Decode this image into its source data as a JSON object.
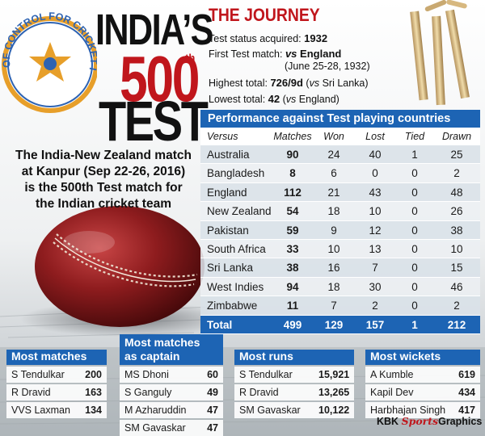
{
  "title": {
    "line1": "INDIA’S",
    "line2": "500",
    "line2_sup": "th",
    "line3": "TEST"
  },
  "emblem": {
    "text": "BOARD OF CONTROL FOR CRICKET IN INDIA",
    "icon": "bcci-star-emblem"
  },
  "intro": {
    "lines": [
      "The India-New Zealand match",
      "at Kanpur (Sep 22-26, 2016)",
      "is the 500th Test match for",
      "the Indian cricket team"
    ]
  },
  "journey": {
    "heading": "THE JOURNEY",
    "status_label": "Test status acquired:",
    "status_value": "1932",
    "first_label": "First Test match:",
    "first_vs": "vs",
    "first_value": "England",
    "first_date": "(June 25-28, 1932)",
    "highest_label": "Highest total:",
    "highest_value": "726/9d",
    "highest_open": "(",
    "highest_vs": "vs",
    "highest_opp": "Sri Lanka)",
    "lowest_label": "Lowest total:",
    "lowest_value": "42",
    "lowest_open": "(",
    "lowest_vs": "vs",
    "lowest_opp": "England)"
  },
  "performance": {
    "heading": "Performance against Test playing countries",
    "columns": [
      "Versus",
      "Matches",
      "Won",
      "Lost",
      "Tied",
      "Drawn"
    ],
    "rows": [
      [
        "Australia",
        "90",
        "24",
        "40",
        "1",
        "25"
      ],
      [
        "Bangladesh",
        "8",
        "6",
        "0",
        "0",
        "2"
      ],
      [
        "England",
        "112",
        "21",
        "43",
        "0",
        "48"
      ],
      [
        "New Zealand",
        "54",
        "18",
        "10",
        "0",
        "26"
      ],
      [
        "Pakistan",
        "59",
        "9",
        "12",
        "0",
        "38"
      ],
      [
        "South Africa",
        "33",
        "10",
        "13",
        "0",
        "10"
      ],
      [
        "Sri Lanka",
        "38",
        "16",
        "7",
        "0",
        "15"
      ],
      [
        "West Indies",
        "94",
        "18",
        "30",
        "0",
        "46"
      ],
      [
        "Zimbabwe",
        "11",
        "7",
        "2",
        "0",
        "2"
      ]
    ],
    "total": [
      "Total",
      "499",
      "129",
      "157",
      "1",
      "212"
    ]
  },
  "panels": {
    "most_matches": {
      "heading": "Most matches",
      "rows": [
        [
          "S Tendulkar",
          "200"
        ],
        [
          "R Dravid",
          "163"
        ],
        [
          "VVS Laxman",
          "134"
        ]
      ]
    },
    "captain": {
      "heading_line1": "Most matches",
      "heading_line2": "as captain",
      "rows": [
        [
          "MS Dhoni",
          "60"
        ],
        [
          "S Ganguly",
          "49"
        ],
        [
          "M Azharuddin",
          "47"
        ],
        [
          "SM Gavaskar",
          "47"
        ]
      ]
    },
    "runs": {
      "heading": "Most runs",
      "rows": [
        [
          "S Tendulkar",
          "15,921"
        ],
        [
          "R Dravid",
          "13,265"
        ],
        [
          "SM Gavaskar",
          "10,122"
        ]
      ]
    },
    "wickets": {
      "heading": "Most wickets",
      "rows": [
        [
          "A Kumble",
          "619"
        ],
        [
          "Kapil Dev",
          "434"
        ],
        [
          "Harbhajan Singh",
          "417"
        ]
      ]
    }
  },
  "credit": {
    "prefix": "KBK",
    "mid": "Sports",
    "suffix": "Graphics"
  },
  "colors": {
    "accent_red": "#c0161c",
    "table_blue": "#1d64b4",
    "emblem_gold": "#e79f2a",
    "emblem_blue": "#2e63b2"
  }
}
